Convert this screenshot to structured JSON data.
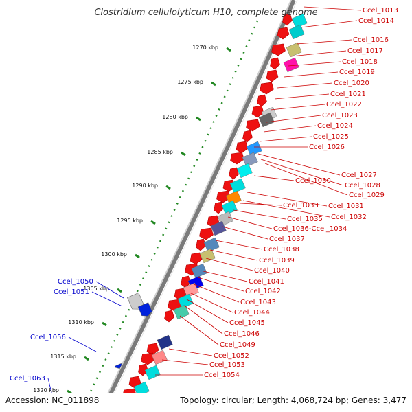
{
  "title": "Clostridium cellulolyticum H10, complete genome",
  "accession": "Accession: NC_011898",
  "topology": "Topology: circular; Length: 4,068,724 bp; Genes: 3,477",
  "colors": {
    "forward_label": "#cc0000",
    "reverse_label": "#0000cc",
    "gene_red": "#ee1111",
    "gene_blue": "#0022dd",
    "tick_green": "#228822",
    "backbone": "#888888"
  },
  "ticks": [
    {
      "label": "1270 kbp"
    },
    {
      "label": "1275 kbp"
    },
    {
      "label": "1280 kbp"
    },
    {
      "label": "1285 kbp"
    },
    {
      "label": "1290 kbp"
    },
    {
      "label": "1295 kbp"
    },
    {
      "label": "1300 kbp"
    },
    {
      "label": "1305 kbp"
    },
    {
      "label": "1310 kbp"
    },
    {
      "label": "1315 kbp"
    },
    {
      "label": "1320 kbp"
    }
  ],
  "forward_labels": [
    "Ccel_1013",
    "Ccel_1014",
    "Ccel_1016",
    "Ccel_1017",
    "Ccel_1018",
    "Ccel_1019",
    "Ccel_1020",
    "Ccel_1021",
    "Ccel_1022",
    "Ccel_1023",
    "Ccel_1024",
    "Ccel_1025",
    "Ccel_1026",
    "Ccel_1027",
    "Ccel_1028",
    "Ccel_1029",
    "Ccel_1030",
    "Ccel_1031",
    "Ccel_1032",
    "Ccel_1033",
    "Ccel_1035",
    "Ccel_1036-Ccel_1034",
    "Ccel_1037",
    "Ccel_1038",
    "Ccel_1039",
    "Ccel_1040",
    "Ccel_1041",
    "Ccel_1042",
    "Ccel_1043",
    "Ccel_1044",
    "Ccel_1045",
    "Ccel_1046",
    "Ccel_1049",
    "Ccel_1052",
    "Ccel_1053",
    "Ccel_1054"
  ],
  "reverse_labels": [
    "Ccel_1050",
    "Ccel_1051",
    "Ccel_1056",
    "Ccel_1063"
  ]
}
